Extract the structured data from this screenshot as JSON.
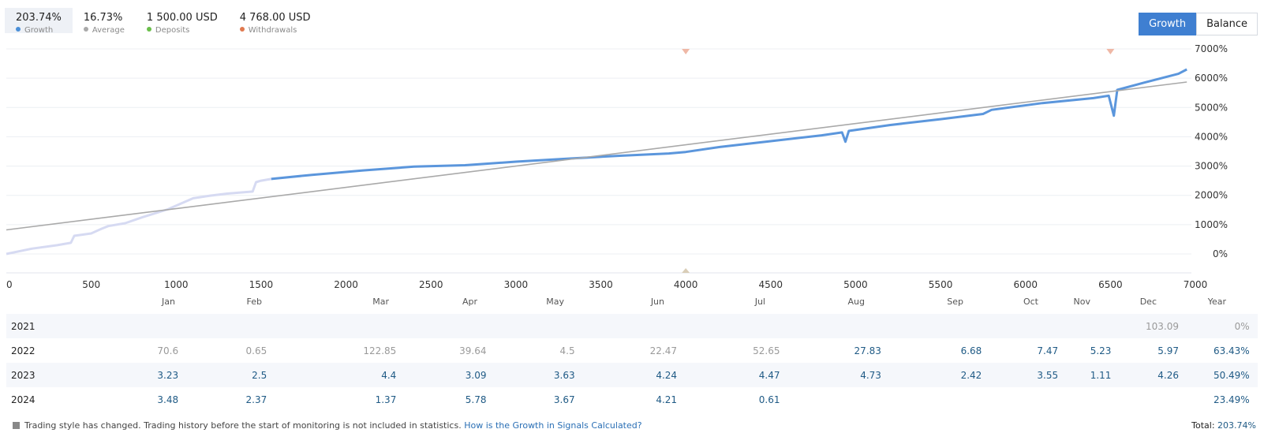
{
  "stats": [
    {
      "value": "203.74%",
      "label": "Growth",
      "color": "#4a8fd8",
      "active": true
    },
    {
      "value": "16.73%",
      "label": "Average",
      "color": "#a9a9a9",
      "active": false
    },
    {
      "value": "1 500.00 USD",
      "label": "Deposits",
      "color": "#6abf4b",
      "active": false
    },
    {
      "value": "4 768.00 USD",
      "label": "Withdrawals",
      "color": "#e0794f",
      "active": false
    }
  ],
  "toggle": {
    "growth_label": "Growth",
    "balance_label": "Balance"
  },
  "chart_data": {
    "type": "line",
    "x_ticks": [
      "0",
      "500",
      "1000",
      "1500",
      "2000",
      "2500",
      "3000",
      "3500",
      "4000",
      "4500",
      "5000",
      "5500",
      "6000",
      "6500",
      "7000"
    ],
    "y_ticks": [
      "7000%",
      "6000%",
      "5000%",
      "4000%",
      "3000%",
      "2000%",
      "1000%",
      "0%"
    ],
    "xlim": [
      0,
      7000
    ],
    "ylim": [
      -600,
      7000
    ],
    "series": [
      {
        "name": "Growth (before monitoring)",
        "color": "#d6daf2",
        "points": [
          [
            0,
            0
          ],
          [
            150,
            180
          ],
          [
            300,
            300
          ],
          [
            380,
            380
          ],
          [
            400,
            620
          ],
          [
            500,
            700
          ],
          [
            560,
            860
          ],
          [
            600,
            950
          ],
          [
            700,
            1050
          ],
          [
            800,
            1250
          ],
          [
            950,
            1520
          ],
          [
            1000,
            1650
          ],
          [
            1100,
            1900
          ],
          [
            1200,
            1990
          ],
          [
            1300,
            2060
          ],
          [
            1450,
            2130
          ],
          [
            1470,
            2450
          ],
          [
            1500,
            2500
          ],
          [
            1560,
            2560
          ]
        ]
      },
      {
        "name": "Growth",
        "color": "#5b96dc",
        "points": [
          [
            1560,
            2560
          ],
          [
            1800,
            2700
          ],
          [
            2100,
            2850
          ],
          [
            2400,
            2980
          ],
          [
            2700,
            3030
          ],
          [
            3000,
            3150
          ],
          [
            3300,
            3250
          ],
          [
            3600,
            3350
          ],
          [
            3900,
            3430
          ],
          [
            4000,
            3480
          ],
          [
            4200,
            3650
          ],
          [
            4500,
            3850
          ],
          [
            4800,
            4050
          ],
          [
            4920,
            4150
          ],
          [
            4940,
            3830
          ],
          [
            4960,
            4200
          ],
          [
            5200,
            4400
          ],
          [
            5500,
            4600
          ],
          [
            5750,
            4780
          ],
          [
            5800,
            4920
          ],
          [
            6100,
            5150
          ],
          [
            6400,
            5320
          ],
          [
            6490,
            5400
          ],
          [
            6520,
            4720
          ],
          [
            6540,
            5600
          ],
          [
            6700,
            5850
          ],
          [
            6900,
            6150
          ],
          [
            6950,
            6300
          ]
        ]
      },
      {
        "name": "Average",
        "color": "#a9a9a9",
        "points": [
          [
            0,
            820
          ],
          [
            6950,
            5870
          ]
        ]
      }
    ],
    "deposit_markers_x": [
      4000
    ],
    "withdrawal_markers_x": [
      4000,
      6500
    ],
    "marker_colors": {
      "deposit": "#d9cdb7",
      "withdrawal": "#efb8a6"
    },
    "grid": true
  },
  "table": {
    "headers": [
      "Jan",
      "Feb",
      "Mar",
      "Apr",
      "May",
      "Jun",
      "Jul",
      "Aug",
      "Sep",
      "Oct",
      "Nov",
      "Dec",
      "Year"
    ],
    "rows": [
      {
        "year": "2021",
        "cells": [
          "",
          "",
          "",
          "",
          "",
          "",
          "",
          "",
          "",
          "",
          "",
          "103.09",
          "0%"
        ],
        "style": "grey"
      },
      {
        "year": "2022",
        "cells": [
          "70.6",
          "0.65",
          "122.85",
          "39.64",
          "4.5",
          "22.47",
          "52.65",
          "27.83",
          "6.68",
          "7.47",
          "5.23",
          "5.97",
          "63.43%"
        ],
        "style": "mixed"
      },
      {
        "year": "2023",
        "cells": [
          "3.23",
          "2.5",
          "4.4",
          "3.09",
          "3.63",
          "4.24",
          "4.47",
          "4.73",
          "2.42",
          "3.55",
          "1.11",
          "4.26",
          "50.49%"
        ],
        "style": "blue"
      },
      {
        "year": "2024",
        "cells": [
          "3.48",
          "2.37",
          "1.37",
          "5.78",
          "3.67",
          "4.21",
          "0.61",
          "",
          "",
          "",
          "",
          "",
          "23.49%"
        ],
        "style": "blue"
      }
    ]
  },
  "footer": {
    "note": "Trading style has changed. Trading history before the start of monitoring is not included in statistics.",
    "link": "How is the Growth in Signals Calculated?",
    "total_label": "Total:",
    "total_value": "203.74%"
  }
}
